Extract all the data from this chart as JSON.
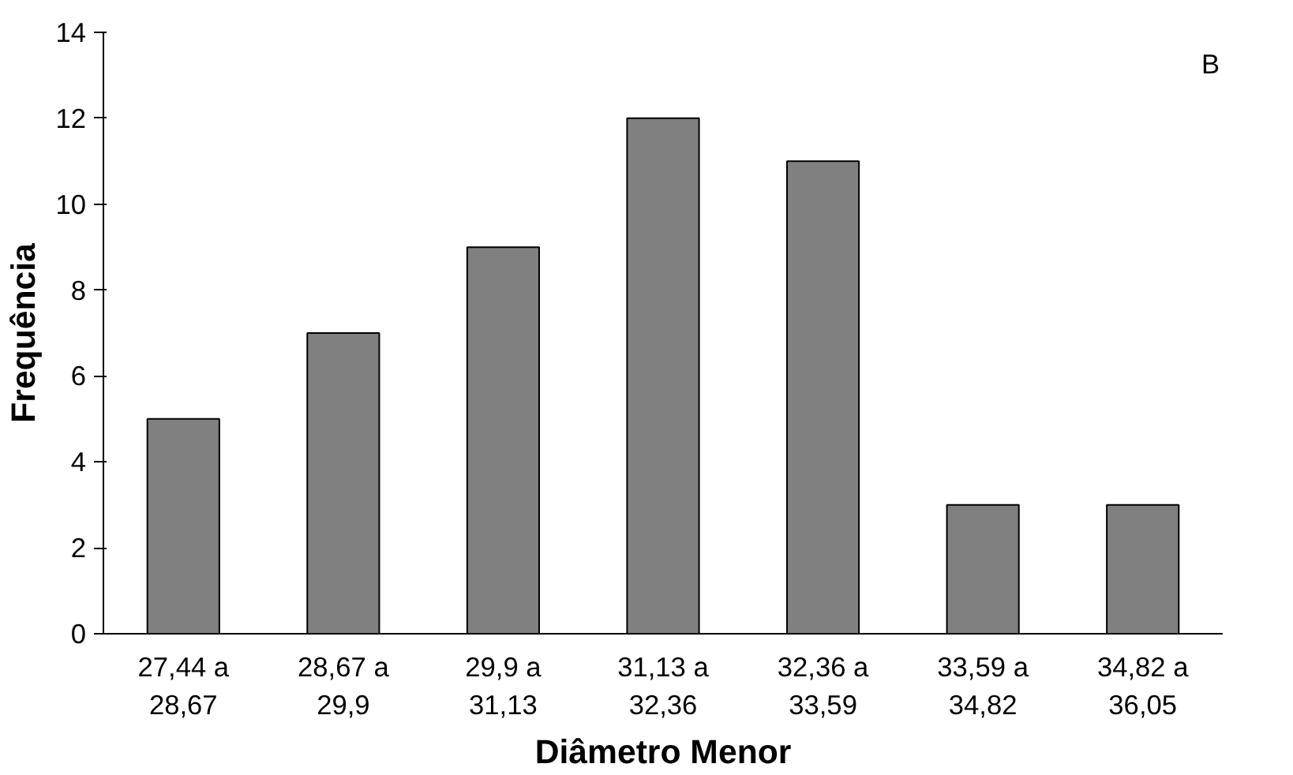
{
  "chart_data": {
    "type": "bar",
    "xlabel": "Diâmetro Menor",
    "ylabel": "Frequência",
    "categories": [
      "27,44 a\n28,67",
      "28,67 a\n29,9",
      "29,9 a\n31,13",
      "31,13 a\n32,36",
      "32,36 a\n33,59",
      "33,59 a\n34,82",
      "34,82 a\n36,05"
    ],
    "values": [
      5,
      7,
      9,
      12,
      11,
      3,
      3
    ],
    "color": "#808080",
    "ylim": [
      0,
      14
    ],
    "yticks": [
      0,
      2,
      4,
      6,
      8,
      10,
      12,
      14
    ],
    "grid": false,
    "annotations": [
      "B"
    ]
  }
}
